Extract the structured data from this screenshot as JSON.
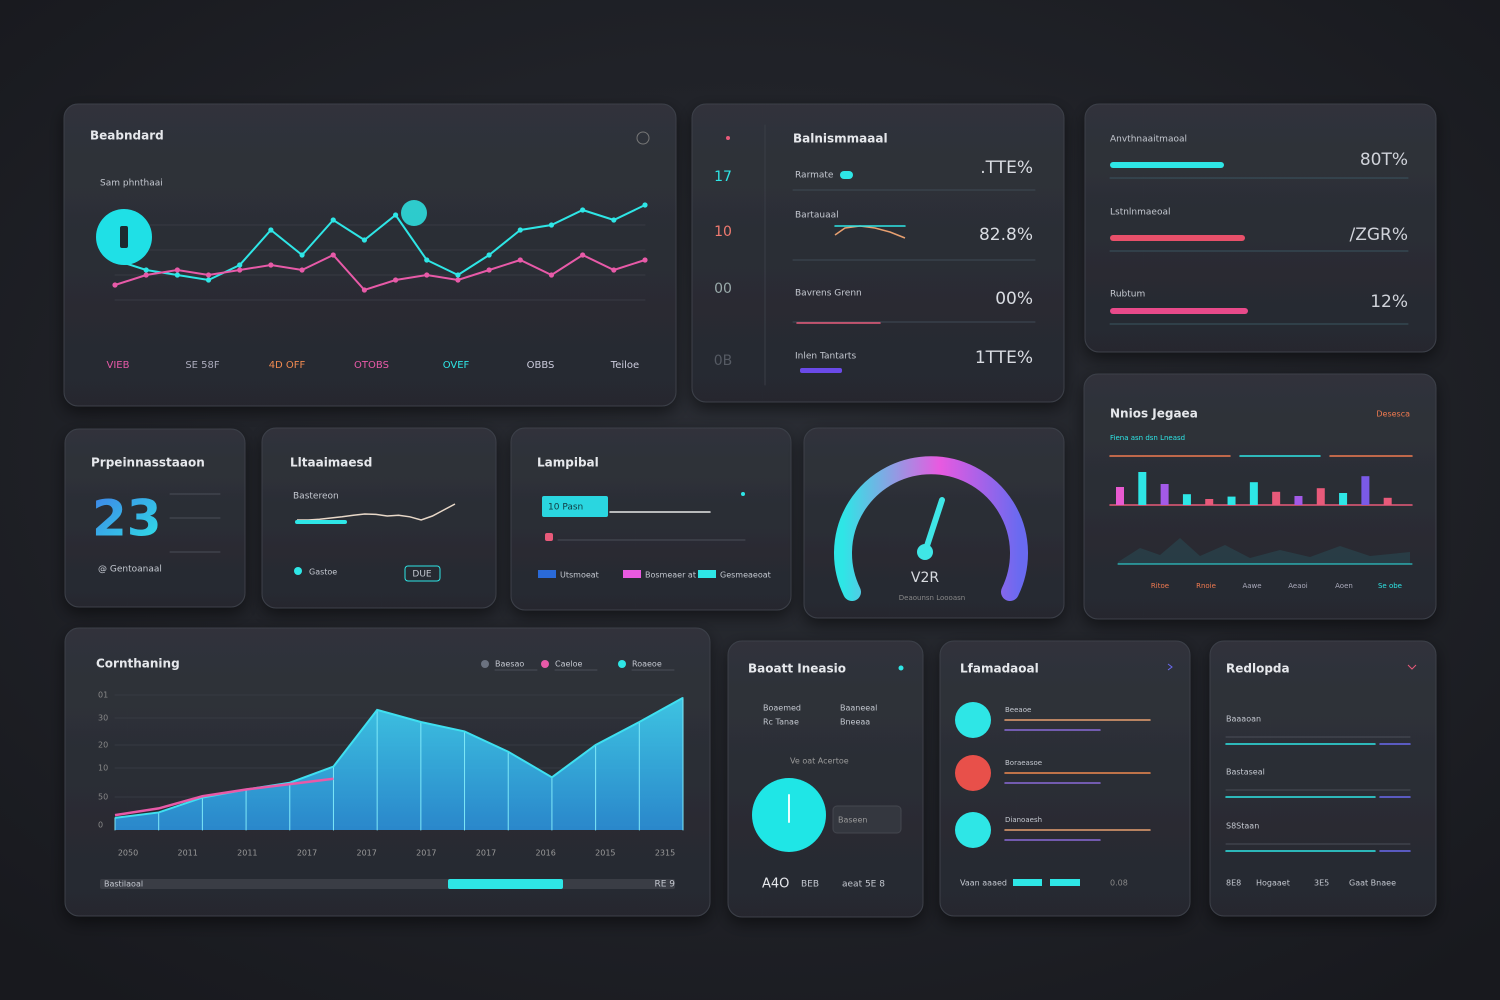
{
  "main_chart": {
    "type": "line",
    "title": "Beabndard",
    "subtitle": "Sam phnthaai",
    "x_labels": [
      "VIEB",
      "SE 58F",
      "4D OFF",
      "OTOBS",
      "OVEF",
      "OBBS",
      "Teiloe"
    ],
    "ylim": [
      0,
      100
    ],
    "series": [
      {
        "color": "#2ee6e6",
        "values": [
          40,
          30,
          25,
          20,
          35,
          70,
          45,
          80,
          60,
          85,
          40,
          25,
          45,
          70,
          75,
          90,
          80,
          95
        ]
      },
      {
        "color": "#e85aa8",
        "values": [
          15,
          25,
          30,
          25,
          30,
          35,
          30,
          45,
          10,
          20,
          25,
          20,
          30,
          40,
          25,
          45,
          30,
          40
        ]
      }
    ]
  },
  "metrics_list": {
    "title": "Balnismmaaal",
    "side_labels": [
      "17",
      "10",
      "00",
      "0B"
    ],
    "rows": [
      {
        "label": "Rarmate",
        "value": ".TTE%"
      },
      {
        "label": "Bartauaal",
        "value": "82.8%"
      },
      {
        "label": "Bavrens Grenn",
        "value": "00%"
      },
      {
        "label": "Inlen Tantarts",
        "value": "1TTE%"
      }
    ]
  },
  "progress": {
    "xlim": [
      0,
      100
    ],
    "rows": [
      {
        "label": "Anvthnaaitmaoal",
        "value": "80T%",
        "fill": 38,
        "color": "#2ee6e6"
      },
      {
        "label": "Lstnlnmaeoal",
        "value": "/ZGR%",
        "fill": 45,
        "color": "#e8506a"
      },
      {
        "label": "Rubtum",
        "value": "12%",
        "fill": 46,
        "color": "#e84a8a"
      }
    ]
  },
  "counter": {
    "title": "Prpeinnasstaaon",
    "value": 23,
    "caption": "@ Gentoanaal"
  },
  "sparkline_card": {
    "title": "Lltaaimaesd",
    "subtitle": "Bastereon",
    "legend": "Gastoe",
    "button": "DUE",
    "ylim": [
      0,
      100
    ],
    "values": [
      30,
      30,
      32,
      35,
      38,
      42,
      45,
      44,
      40,
      42,
      38,
      30,
      40,
      55,
      70
    ]
  },
  "slider_card": {
    "title": "Lampibal",
    "chip": "10 Pasn",
    "legend": [
      "Utsmoeat",
      "Bosmeaer at",
      "Gesmeaeoat"
    ]
  },
  "gauge": {
    "label": "V2R",
    "caption": "Deaounsn Loooasn"
  },
  "bar_panel": {
    "type": "bar",
    "title": "Nnios Jegaea",
    "tag": "Desesca",
    "note": "Fiena asn dsn Lneasd",
    "ylim": [
      0,
      100
    ],
    "values": [
      30,
      55,
      35,
      18,
      10,
      14,
      38,
      22,
      15,
      28,
      20,
      48,
      12
    ],
    "colors": [
      "#e85ad0",
      "#2ee6e6",
      "#a35ae8",
      "#2ee6e6",
      "#e85a7a",
      "#2ee6e6",
      "#2ee6e6",
      "#e85a7a",
      "#a35ae8",
      "#e85a7a",
      "#2ee6e6",
      "#7a5ae8",
      "#e85a7a"
    ],
    "x_labels": [
      "Ritoe",
      "Rnoie",
      "Aawe",
      "Aeaoi",
      "Aoen",
      "Se obe"
    ]
  },
  "area_chart": {
    "type": "area",
    "title": "Cornthaning",
    "legend": [
      {
        "name": "Baesao",
        "color": "#6b7280"
      },
      {
        "name": "Caeloe",
        "color": "#e85aa8"
      },
      {
        "name": "Roaeoe",
        "color": "#2ee6e6"
      }
    ],
    "y_labels": [
      "01",
      "30",
      "20",
      "10",
      "50",
      "0"
    ],
    "x_labels": [
      "2050",
      "2011",
      "2011",
      "2017",
      "2017",
      "2017",
      "2017",
      "2016",
      "2015",
      "2315"
    ],
    "ylim": [
      0,
      100
    ],
    "values": [
      9,
      13,
      24,
      30,
      35,
      47,
      89,
      80,
      73,
      58,
      39,
      63,
      80,
      98
    ],
    "pink": [
      11,
      16,
      25,
      30,
      34,
      38,
      null,
      null,
      null,
      null,
      null,
      null,
      null,
      null
    ],
    "footer": "Bastilaoal",
    "footer_right": "RE 9"
  },
  "card_a": {
    "title": "Baoatt Ineasio",
    "cols": [
      [
        "Boaemed",
        "Rc Tanae"
      ],
      [
        "Baaneeal",
        "Bneeaa"
      ]
    ],
    "note": "Ve oat Acertoe",
    "chip": "Baseen",
    "footer": [
      "A4O",
      "BEB",
      "aeat 5E 8"
    ]
  },
  "card_b": {
    "title": "Lfamadaoal",
    "rows": [
      {
        "label": "Beeaoe",
        "color": "#2ee6e6"
      },
      {
        "label": "Boraeasoe",
        "color": "#e8504a"
      },
      {
        "label": "Dianoaesh",
        "color": "#2ee6e6"
      }
    ],
    "footer": [
      "Vaan aaaed",
      "0.08"
    ]
  },
  "card_c": {
    "title": "Redlopda",
    "rows": [
      "Baaaoan",
      "Bastaseal",
      "S8Staan"
    ],
    "footer": [
      "8E8",
      "Hogaaet",
      "3E5",
      "Gaat Bnaee"
    ]
  }
}
